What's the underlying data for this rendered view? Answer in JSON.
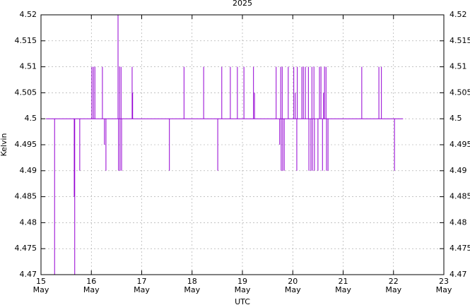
{
  "chart_data": {
    "type": "line",
    "title": "2025",
    "ylabel": "Kelvin",
    "xlabel": "UTC",
    "x_month": "May",
    "x": [
      15.1,
      15.27,
      15.27,
      15.27,
      15.66,
      15.66,
      15.66,
      15.67,
      15.67,
      15.67,
      15.77,
      15.77,
      15.77,
      16.01,
      16.01,
      16.01,
      16.04,
      16.04,
      16.04,
      16.07,
      16.07,
      16.07,
      16.22,
      16.22,
      16.22,
      16.26,
      16.26,
      16.26,
      16.29,
      16.29,
      16.29,
      16.53,
      16.53,
      16.53,
      16.54,
      16.54,
      16.54,
      16.56,
      16.56,
      16.56,
      16.57,
      16.57,
      16.57,
      16.59,
      16.59,
      16.59,
      16.6,
      16.6,
      16.6,
      16.81,
      16.81,
      16.81,
      16.82,
      16.82,
      16.82,
      17.55,
      17.55,
      17.55,
      17.84,
      17.84,
      17.84,
      18.23,
      18.23,
      18.23,
      18.51,
      18.51,
      18.51,
      18.59,
      18.59,
      18.59,
      18.76,
      18.76,
      18.76,
      18.9,
      18.9,
      18.9,
      19.03,
      19.03,
      19.03,
      19.22,
      19.22,
      19.22,
      19.24,
      19.24,
      19.24,
      19.67,
      19.67,
      19.67,
      19.74,
      19.74,
      19.74,
      19.76,
      19.76,
      19.76,
      19.77,
      19.77,
      19.77,
      19.79,
      19.79,
      19.79,
      19.8,
      19.8,
      19.8,
      19.83,
      19.83,
      19.83,
      19.91,
      19.91,
      19.91,
      20.02,
      20.02,
      20.02,
      20.05,
      20.05,
      20.05,
      20.08,
      20.08,
      20.08,
      20.09,
      20.09,
      20.09,
      20.18,
      20.18,
      20.18,
      20.21,
      20.21,
      20.21,
      20.25,
      20.25,
      20.25,
      20.31,
      20.31,
      20.31,
      20.32,
      20.32,
      20.32,
      20.36,
      20.36,
      20.36,
      20.38,
      20.38,
      20.38,
      20.39,
      20.39,
      20.39,
      20.42,
      20.42,
      20.42,
      20.43,
      20.43,
      20.43,
      20.5,
      20.5,
      20.5,
      20.53,
      20.53,
      20.53,
      20.56,
      20.56,
      20.56,
      20.59,
      20.59,
      20.59,
      20.61,
      20.61,
      20.61,
      20.63,
      20.63,
      20.63,
      20.66,
      20.66,
      20.66,
      20.67,
      20.67,
      20.67,
      20.7,
      20.7,
      20.7,
      21.37,
      21.37,
      21.37,
      21.71,
      21.71,
      21.71,
      21.76,
      21.76,
      21.76,
      22.02,
      22.02,
      22.02,
      22.19
    ],
    "series": [
      {
        "color": "#9400d3",
        "values": [
          4.5,
          4.5,
          4.47,
          4.5,
          4.5,
          4.485,
          4.5,
          4.5,
          4.47,
          4.5,
          4.5,
          4.49,
          4.5,
          4.5,
          4.51,
          4.5,
          4.5,
          4.51,
          4.5,
          4.5,
          4.51,
          4.5,
          4.5,
          4.51,
          4.5,
          4.5,
          4.495,
          4.5,
          4.5,
          4.49,
          4.5,
          4.5,
          4.52,
          4.5,
          4.5,
          4.49,
          4.5,
          4.5,
          4.51,
          4.5,
          4.5,
          4.49,
          4.5,
          4.5,
          4.51,
          4.5,
          4.5,
          4.49,
          4.5,
          4.5,
          4.51,
          4.5,
          4.5,
          4.505,
          4.5,
          4.5,
          4.49,
          4.5,
          4.5,
          4.51,
          4.5,
          4.5,
          4.51,
          4.5,
          4.5,
          4.49,
          4.5,
          4.5,
          4.51,
          4.5,
          4.5,
          4.51,
          4.5,
          4.5,
          4.51,
          4.5,
          4.5,
          4.51,
          4.5,
          4.5,
          4.51,
          4.5,
          4.5,
          4.505,
          4.5,
          4.5,
          4.51,
          4.5,
          4.5,
          4.495,
          4.5,
          4.5,
          4.51,
          4.5,
          4.5,
          4.49,
          4.5,
          4.5,
          4.51,
          4.5,
          4.5,
          4.49,
          4.5,
          4.5,
          4.49,
          4.5,
          4.5,
          4.51,
          4.5,
          4.5,
          4.51,
          4.5,
          4.5,
          4.505,
          4.5,
          4.5,
          4.49,
          4.5,
          4.5,
          4.51,
          4.5,
          4.5,
          4.51,
          4.5,
          4.5,
          4.51,
          4.5,
          4.5,
          4.51,
          4.5,
          4.5,
          4.51,
          4.5,
          4.5,
          4.49,
          4.5,
          4.5,
          4.49,
          4.5,
          4.5,
          4.51,
          4.5,
          4.5,
          4.49,
          4.5,
          4.5,
          4.51,
          4.5,
          4.5,
          4.49,
          4.5,
          4.5,
          4.49,
          4.5,
          4.5,
          4.51,
          4.5,
          4.5,
          4.51,
          4.5,
          4.5,
          4.49,
          4.5,
          4.5,
          4.505,
          4.5,
          4.5,
          4.51,
          4.5,
          4.5,
          4.51,
          4.5,
          4.5,
          4.49,
          4.5,
          4.5,
          4.49,
          4.5,
          4.5,
          4.51,
          4.5,
          4.5,
          4.51,
          4.5,
          4.5,
          4.51,
          4.5,
          4.5,
          4.49,
          4.5,
          4.5
        ]
      }
    ],
    "xlim": [
      15,
      23
    ],
    "xticks": [
      15,
      16,
      17,
      18,
      19,
      20,
      21,
      22,
      23
    ],
    "ylim": [
      4.47,
      4.52
    ],
    "yticks": [
      4.47,
      4.475,
      4.48,
      4.485,
      4.49,
      4.495,
      4.5,
      4.505,
      4.51,
      4.515,
      4.52
    ],
    "grid": true
  }
}
